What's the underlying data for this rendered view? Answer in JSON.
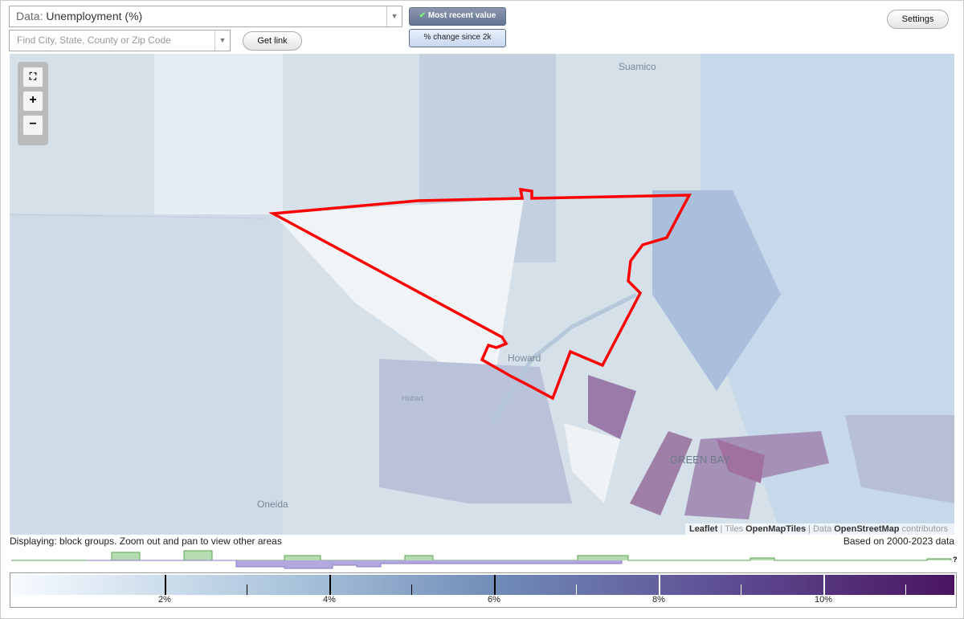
{
  "toolbar": {
    "data_label": "Data:",
    "data_value": "Unemployment (%)",
    "search_placeholder": "Find City, State, County or Zip Code",
    "get_link": "Get link",
    "most_recent": "Most recent value",
    "change_since": "% change since 2k",
    "settings": "Settings"
  },
  "map": {
    "zoom_in": "+",
    "zoom_out": "−",
    "places": [
      "Suamico",
      "Howard",
      "Hobart",
      "GREEN BAY",
      "Oneida"
    ],
    "attribution": [
      "Leaflet",
      "|",
      "Tiles",
      "OpenMapTiles",
      "|",
      "Data",
      "OpenStreetMap",
      "contributors"
    ]
  },
  "footer": {
    "displaying": "Displaying: block groups. Zoom out and pan to view other areas",
    "based_on": "Based on 2000-2023 data",
    "help": "?"
  },
  "legend": {
    "ticks": [
      "2%",
      "4%",
      "6%",
      "8%",
      "10%"
    ]
  }
}
